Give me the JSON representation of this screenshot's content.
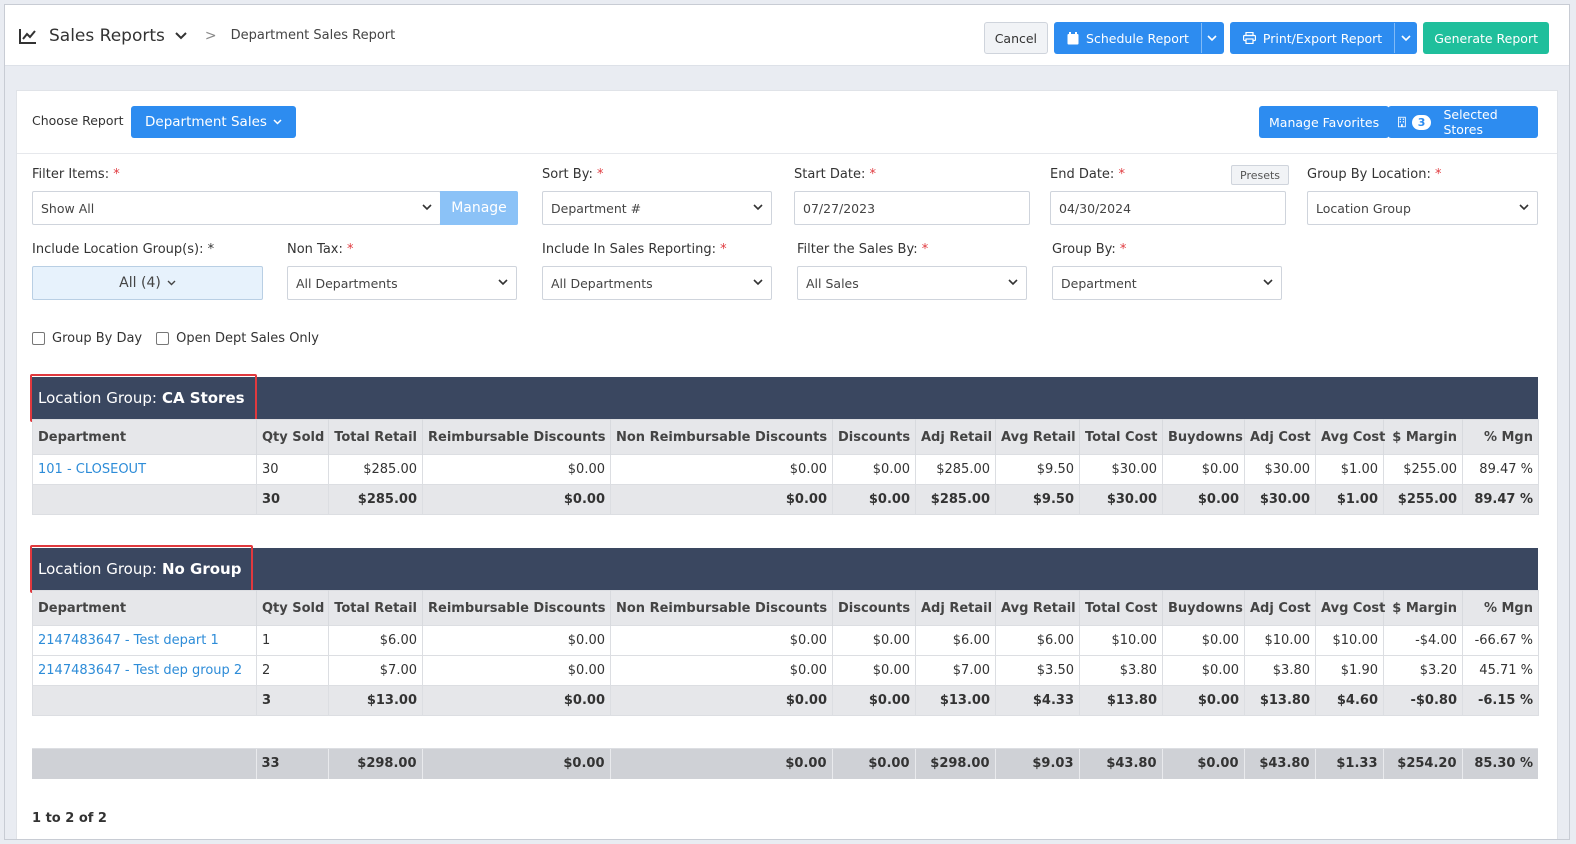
{
  "header": {
    "app_title": "Sales Reports",
    "breadcrumb": "Department Sales Report",
    "cancel_label": "Cancel",
    "schedule_label": "Schedule Report",
    "print_label": "Print/Export Report",
    "generate_label": "Generate Report"
  },
  "toolbar": {
    "choose_report_label": "Choose Report",
    "report_selected": "Department Sales",
    "manage_favorites_label": "Manage Favorites",
    "selected_stores_count": "3",
    "selected_stores_label": "Selected Stores"
  },
  "filters": {
    "filter_items": {
      "label": "Filter Items:",
      "value": "Show All",
      "manage_label": "Manage"
    },
    "sort_by": {
      "label": "Sort By:",
      "value": "Department #"
    },
    "start_date": {
      "label": "Start Date:",
      "value": "07/27/2023"
    },
    "end_date": {
      "label": "End Date:",
      "value": "04/30/2024",
      "presets_label": "Presets"
    },
    "group_by_location": {
      "label": "Group By Location:",
      "value": "Location Group"
    },
    "include_location_groups": {
      "label": "Include Location Group(s): *",
      "value": "All (4)"
    },
    "non_tax": {
      "label": "Non Tax:",
      "value": "All Departments"
    },
    "include_in_sales": {
      "label": "Include In Sales Reporting:",
      "value": "All Departments"
    },
    "filter_sales_by": {
      "label": "Filter the Sales By:",
      "value": "All Sales"
    },
    "group_by": {
      "label": "Group By:",
      "value": "Department"
    },
    "required_mark": "*"
  },
  "checkboxes": {
    "group_by_day": "Group By Day",
    "open_dept_sales_only": "Open Dept Sales Only"
  },
  "columns": [
    "Department",
    "Qty Sold",
    "Total Retail",
    "Reimbursable Discounts",
    "Non Reimbursable Discounts",
    "Discounts",
    "Adj Retail",
    "Avg Retail",
    "Total Cost",
    "Buydowns",
    "Adj Cost",
    "Avg Cost",
    "$ Margin",
    "% Mgn"
  ],
  "groups": [
    {
      "prefix": "Location Group:",
      "name": "CA Stores",
      "rows": [
        [
          "101 - CLOSEOUT",
          "30",
          "$285.00",
          "$0.00",
          "$0.00",
          "$0.00",
          "$285.00",
          "$9.50",
          "$30.00",
          "$0.00",
          "$30.00",
          "$1.00",
          "$255.00",
          "89.47 %"
        ]
      ],
      "total": [
        "",
        "30",
        "$285.00",
        "$0.00",
        "$0.00",
        "$0.00",
        "$285.00",
        "$9.50",
        "$30.00",
        "$0.00",
        "$30.00",
        "$1.00",
        "$255.00",
        "89.47 %"
      ]
    },
    {
      "prefix": "Location Group:",
      "name": "No Group",
      "rows": [
        [
          "2147483647 - Test depart 1",
          "1",
          "$6.00",
          "$0.00",
          "$0.00",
          "$0.00",
          "$6.00",
          "$6.00",
          "$10.00",
          "$0.00",
          "$10.00",
          "$10.00",
          "-$4.00",
          "-66.67 %"
        ],
        [
          "2147483647 - Test dep group 2",
          "2",
          "$7.00",
          "$0.00",
          "$0.00",
          "$0.00",
          "$7.00",
          "$3.50",
          "$3.80",
          "$0.00",
          "$3.80",
          "$1.90",
          "$3.20",
          "45.71 %"
        ]
      ],
      "total": [
        "",
        "3",
        "$13.00",
        "$0.00",
        "$0.00",
        "$0.00",
        "$13.00",
        "$4.33",
        "$13.80",
        "$0.00",
        "$13.80",
        "$4.60",
        "-$0.80",
        "-6.15 %"
      ]
    }
  ],
  "grand_total": [
    "",
    "33",
    "$298.00",
    "$0.00",
    "$0.00",
    "$0.00",
    "$298.00",
    "$9.03",
    "$43.80",
    "$0.00",
    "$43.80",
    "$1.33",
    "$254.20",
    "85.30 %"
  ],
  "pager": "1 to 2 of 2",
  "colors": {
    "primary": "#2d8cf0",
    "teal": "#1fbf9c",
    "group_bar": "#3a4760",
    "highlight": "#e0393e",
    "link": "#2d8cd8"
  }
}
